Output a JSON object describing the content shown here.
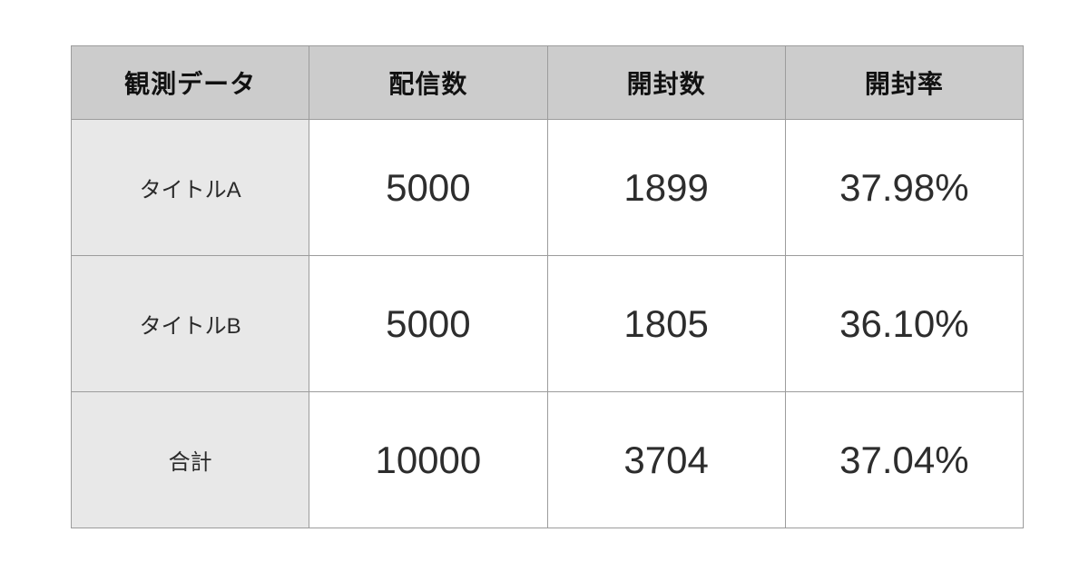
{
  "colors": {
    "page_bg": "#ffffff",
    "header_bg": "#cccccc",
    "row_label_bg": "#e8e8e8",
    "cell_bg": "#ffffff",
    "border": "#9c9c9c",
    "header_text": "#111111",
    "body_text": "#2d2d2d"
  },
  "chart_data": {
    "type": "table",
    "columns": [
      "観測データ",
      "配信数",
      "開封数",
      "開封率"
    ],
    "rows": [
      [
        "タイトルA",
        "5000",
        "1899",
        "37.98%"
      ],
      [
        "タイトルB",
        "5000",
        "1805",
        "36.10%"
      ],
      [
        "合計",
        "10000",
        "3704",
        "37.04%"
      ]
    ]
  }
}
